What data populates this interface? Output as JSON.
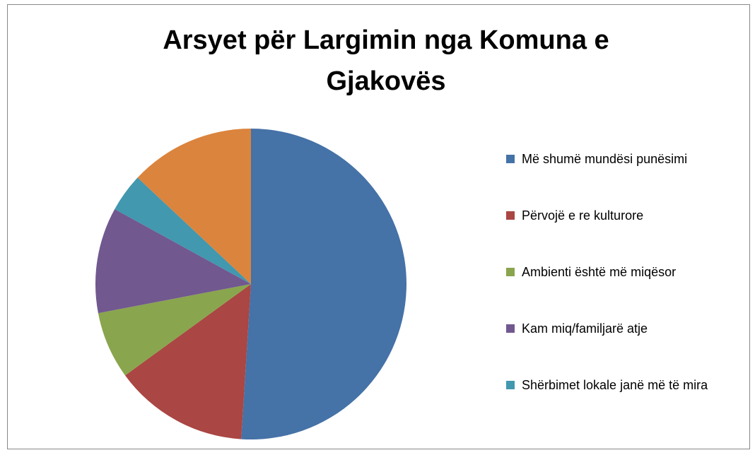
{
  "chart_data": {
    "type": "pie",
    "title": "Arsyet për Largimin nga Komuna e Gjakovës",
    "categories": [
      "Më shumë mundësi punësimi",
      "Përvojë e re kulturore",
      "Ambienti është më miqësor",
      "Kam miq/familjarë atje",
      "Shërbimet lokale janë më të mira",
      null
    ],
    "values": [
      51,
      14,
      7,
      11,
      4,
      13
    ],
    "colors": [
      "#4572a7",
      "#aa4643",
      "#89a54e",
      "#71588f",
      "#4198af",
      "#db843d"
    ],
    "legend": "right"
  }
}
